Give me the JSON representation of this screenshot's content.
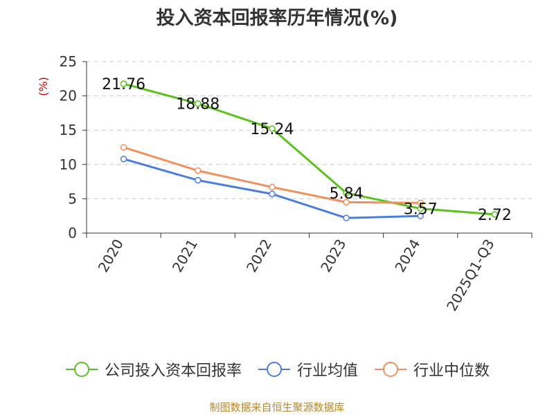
{
  "title": "投入资本回报率历年情况(%)",
  "source": "制图数据来自恒生聚源数据库",
  "colors": {
    "text": "#333333",
    "grid": "#c8c8c8",
    "axis": "#333333",
    "unit_label": "#cc0000",
    "source": "#b8862b"
  },
  "chart_data": {
    "type": "line",
    "title": "投入资本回报率历年情况(%)",
    "ylabel": "(%)",
    "xlabel": "",
    "categories": [
      "2020",
      "2021",
      "2022",
      "2023",
      "2024",
      "2025Q1-Q3"
    ],
    "ylim": [
      0,
      25
    ],
    "yticks": [
      0,
      5,
      10,
      15,
      20,
      25
    ],
    "grid": "horizontal dashed",
    "legend_position": "bottom",
    "series": [
      {
        "name": "公司投入资本回报率",
        "color": "#5ac21e",
        "values": [
          21.76,
          18.88,
          15.24,
          5.84,
          3.57,
          2.72
        ],
        "labels": [
          "21.76",
          "18.88",
          "15.24",
          "5.84",
          "3.57",
          "2.72"
        ]
      },
      {
        "name": "行业均值",
        "color": "#4a7ede",
        "values": [
          10.8,
          7.7,
          5.7,
          2.2,
          2.5,
          null
        ]
      },
      {
        "name": "行业中位数",
        "color": "#f28f5c",
        "values": [
          12.5,
          9.1,
          6.7,
          4.5,
          4.4,
          null
        ]
      }
    ]
  }
}
